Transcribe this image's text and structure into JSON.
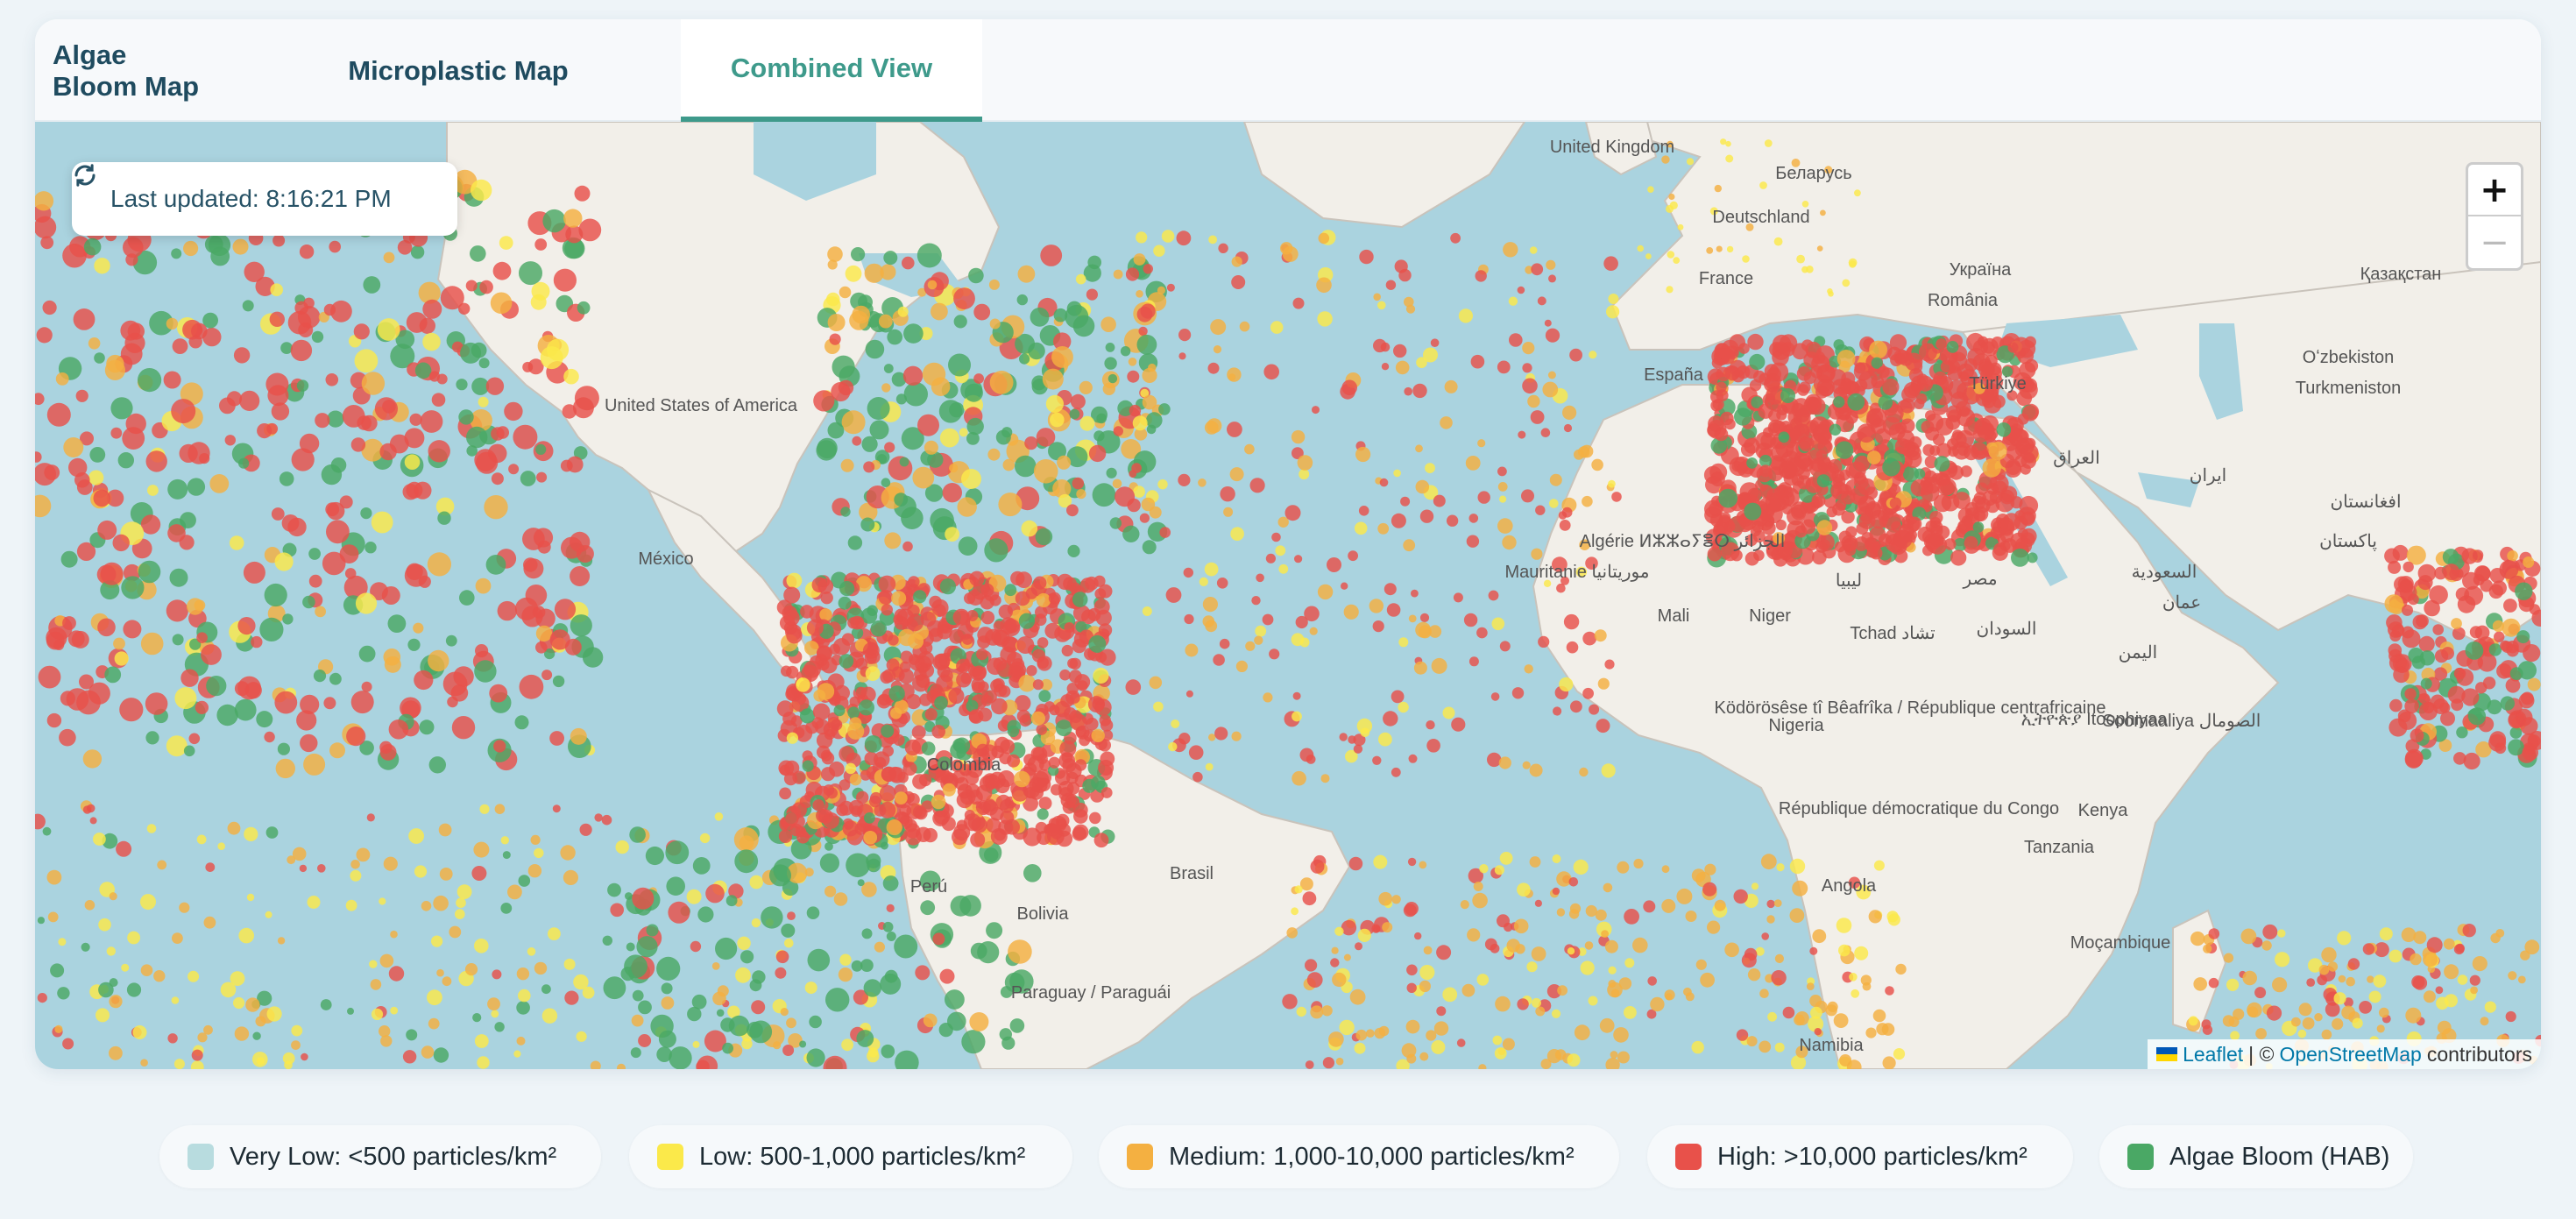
{
  "tabs": [
    {
      "label": "Algae Bloom Map",
      "active": false
    },
    {
      "label": "Microplastic Map",
      "active": false
    },
    {
      "label": "Combined View",
      "active": true
    }
  ],
  "map": {
    "last_updated": "Last updated: 8:16:21 PM",
    "zoom_in": "+",
    "zoom_out": "−",
    "attribution": {
      "leaflet": "Leaflet",
      "sep": "| ©",
      "osm": "OpenStreetMap",
      "contributors": "contributors"
    },
    "place_labels": [
      "United Kingdom",
      "Беларусь",
      "Deutschland",
      "Україна",
      "France",
      "România",
      "Қазақстан",
      "España",
      "Türkiye",
      "Oʻzbekiston",
      "Turkmeniston",
      "United States of America",
      "العراق",
      "ايران",
      "افغانستان",
      "Algérie ⵍⵣⵣⴰⵢⴻⵔ الجزائر",
      "ليبيا",
      "مصر",
      "پاکستان",
      "السعودية",
      "México",
      "Mauritanie موريتانيا",
      "عمان",
      "Mali",
      "Niger",
      "Tchad تشاد",
      "السودان",
      "اليمن",
      "Colombia",
      "Nigeria",
      "Ködörösêse tî Bêafrîka / République centrafricaine",
      "ኢትዮጵያ Itoophiyaa",
      "Soomaaliya الصومال",
      "République démocratique du Congo",
      "Kenya",
      "Tanzania",
      "Perú",
      "Brasil",
      "Bolivia",
      "Angola",
      "Moçambique",
      "Paraguay / Paraguái",
      "Namibia"
    ],
    "colors": {
      "water": "#aad3df",
      "land": "#f2efe9",
      "very_low": "#b8dcdf",
      "low": "#fbe94a",
      "medium": "#f4b041",
      "high": "#e8514a",
      "algae": "#4aa865"
    }
  },
  "legend": [
    {
      "label": "Very Low: <500 particles/km²",
      "color": "#b8dcdf"
    },
    {
      "label": "Low: 500-1,000 particles/km²",
      "color": "#fbe94a"
    },
    {
      "label": "Medium: 1,000-10,000 particles/km²",
      "color": "#f4b041"
    },
    {
      "label": "High: >10,000 particles/km²",
      "color": "#e8514a"
    },
    {
      "label": "Algae Bloom (HAB)",
      "color": "#4aa865"
    }
  ]
}
